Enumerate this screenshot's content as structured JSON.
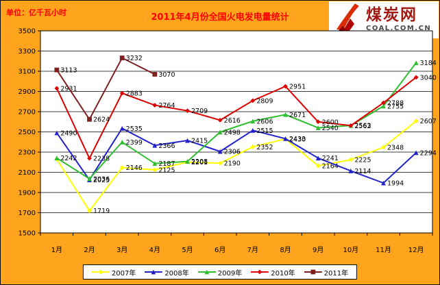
{
  "header": {
    "unit_label": "单位：亿千瓦小时",
    "title": "2011年4月份全国火电发电量统计",
    "logo": {
      "name": "煤炭网",
      "domain": "COAL.COM.CN"
    }
  },
  "chart_data": {
    "type": "line",
    "title": "2011年4月份全国火电发电量统计",
    "unit_label": "单位：亿千瓦小时",
    "categories": [
      "1月",
      "2月",
      "3月",
      "4月",
      "5月",
      "6月",
      "7月",
      "8月",
      "9月",
      "10月",
      "11月",
      "12月"
    ],
    "ylim": [
      1500,
      3500
    ],
    "yticks": [
      1500,
      1700,
      1900,
      2100,
      2300,
      2500,
      2700,
      2900,
      3100,
      3300,
      3500
    ],
    "grid": true,
    "legend_position": "bottom",
    "series": [
      {
        "name": "2007年",
        "color": "#FFFF00",
        "marker": "diamond",
        "values": [
          2230,
          1719,
          2146,
          2125,
          2201,
          2190,
          2352,
          2430,
          2164,
          2225,
          2348,
          2607
        ],
        "labels": [
          "",
          "1719",
          "2146",
          "2125",
          "2201",
          "2190",
          "2352",
          "2430",
          "2164",
          "2225",
          "2348",
          "2607"
        ]
      },
      {
        "name": "2008年",
        "color": "#2222CC",
        "marker": "triangle",
        "values": [
          2490,
          2025,
          2535,
          2366,
          2415,
          2306,
          2515,
          2433,
          2241,
          2114,
          1994,
          2294
        ],
        "labels": [
          "2490",
          "2025",
          "2535",
          "2366",
          "2415",
          "2306",
          "2515",
          "2433",
          "2241",
          "2114",
          "1994",
          "2294"
        ]
      },
      {
        "name": "2009年",
        "color": "#2EBE2E",
        "marker": "triangle",
        "values": [
          2242,
          2036,
          2399,
          2187,
          2208,
          2498,
          2606,
          2671,
          2540,
          2563,
          2755,
          3184
        ],
        "labels": [
          "2242",
          "2036",
          "2399",
          "2187",
          "2208",
          "2498",
          "2606",
          "2671",
          "2540",
          "2563",
          "2755",
          "3184"
        ]
      },
      {
        "name": "2010年",
        "color": "#DD0000",
        "marker": "diamond",
        "values": [
          2931,
          2238,
          2883,
          2764,
          2709,
          2616,
          2809,
          2951,
          2600,
          2562,
          2788,
          3040
        ],
        "labels": [
          "2931",
          "2238",
          "2883",
          "2764",
          "2709",
          "2616",
          "2809",
          "2951",
          "2600",
          "2562",
          "2788",
          "3040"
        ]
      },
      {
        "name": "2011年",
        "color": "#7E2020",
        "marker": "square",
        "values": [
          3113,
          2624,
          3232,
          3070
        ],
        "labels": [
          "3113",
          "2624",
          "3232",
          "3070"
        ]
      }
    ]
  }
}
